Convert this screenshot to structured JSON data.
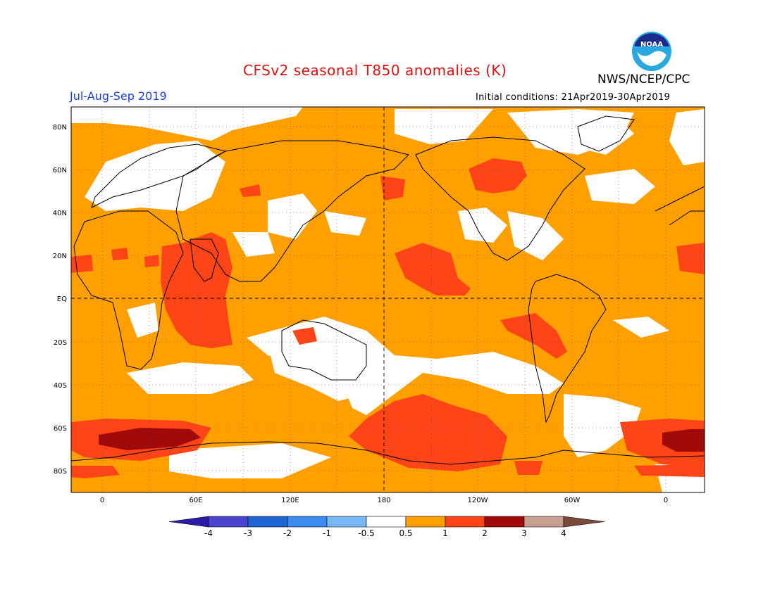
{
  "header": {
    "title": "CFSv2 seasonal T850 anomalies (K)",
    "period": "Jul-Aug-Sep 2019",
    "agency": "NWS/NCEP/CPC",
    "initial_conditions": "Initial conditions: 21Apr2019-30Apr2019",
    "logo_text": "NOAA"
  },
  "map": {
    "lat_labels": [
      "80N",
      "60N",
      "40N",
      "20N",
      "EQ",
      "20S",
      "40S",
      "60S",
      "80S"
    ],
    "lon_labels": [
      "0",
      "60E",
      "120E",
      "180",
      "120W",
      "60W",
      "0"
    ],
    "background_color": "#ffa000"
  },
  "colorbar": {
    "tick_labels": [
      "-4",
      "-3",
      "-2",
      "-1",
      "-0.5",
      "0.5",
      "1",
      "2",
      "3",
      "4"
    ],
    "colors": [
      "#2a1aa8",
      "#4a44d0",
      "#1e64d2",
      "#3c8cf0",
      "#78b8f4",
      "#ffffff",
      "#ffa000",
      "#ff4418",
      "#a00a0a",
      "#c8a090",
      "#7a4a3c"
    ]
  }
}
